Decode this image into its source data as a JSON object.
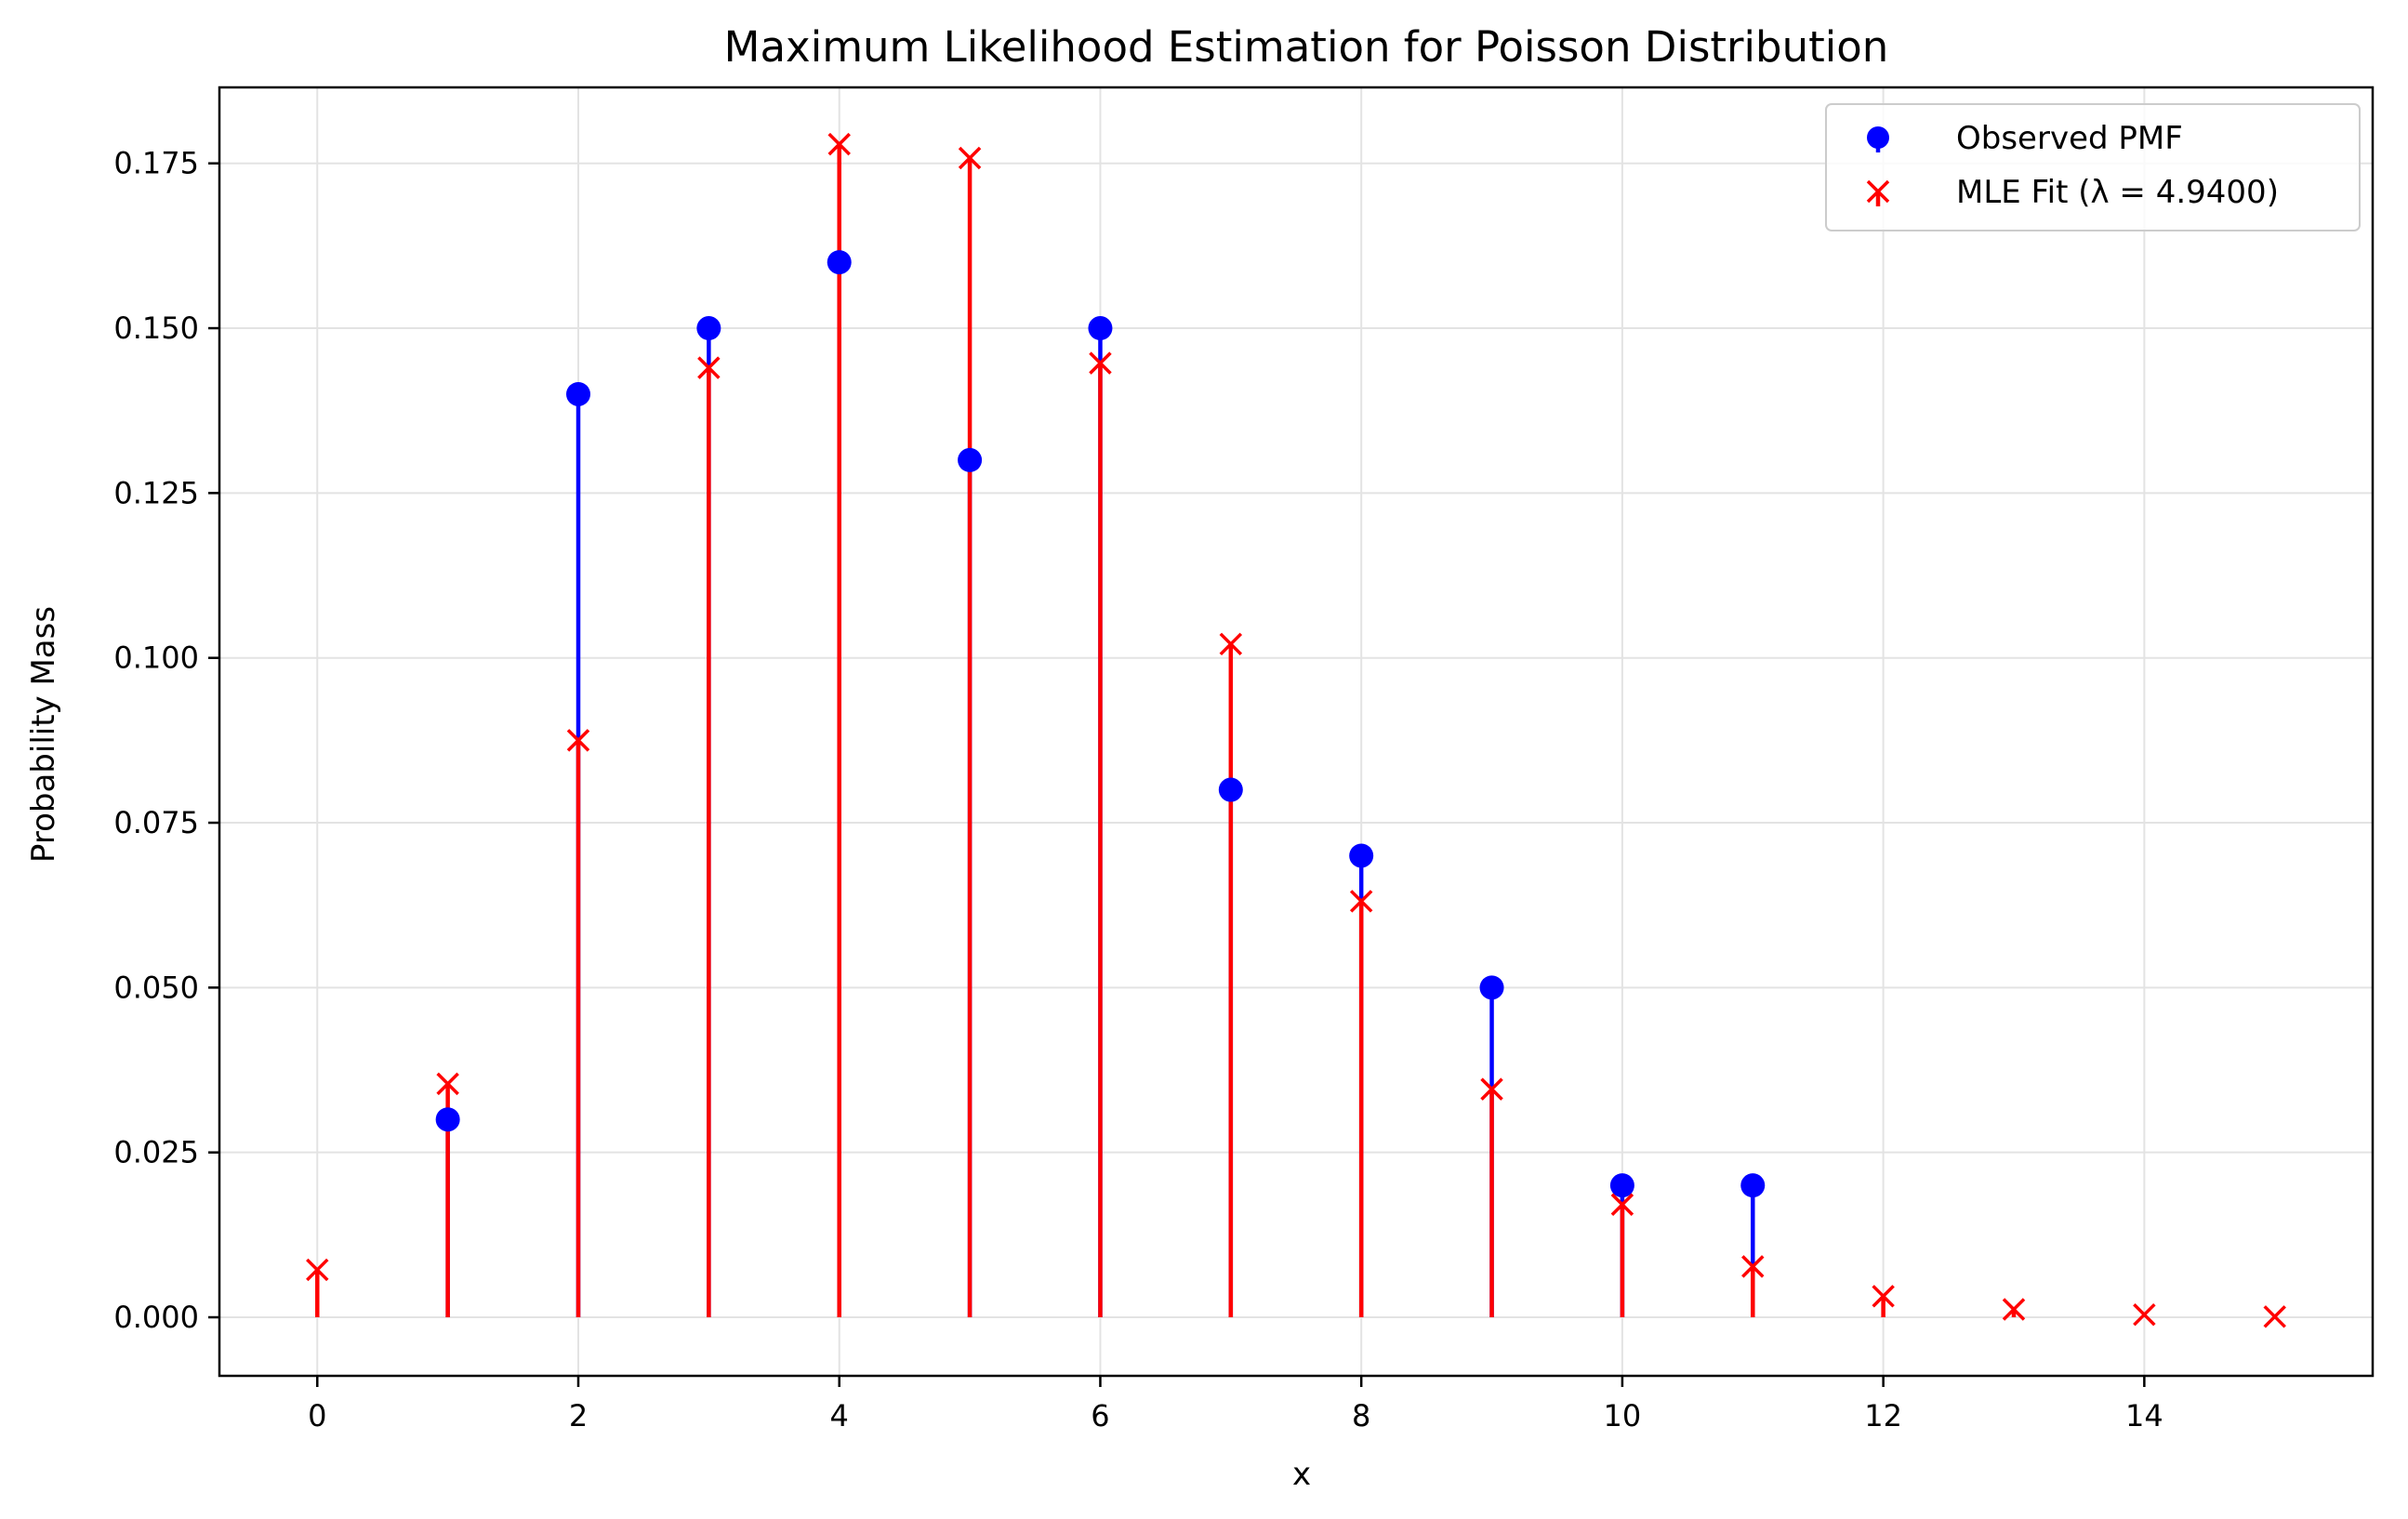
{
  "chart_data": {
    "type": "scatter",
    "title": "Maximum Likelihood Estimation for Poisson Distribution",
    "xlabel": "x",
    "ylabel": "Probability Mass",
    "xlim": [
      -0.75,
      15.75
    ],
    "ylim": [
      -0.00888,
      0.18652
    ],
    "x_ticks": [
      0,
      2,
      4,
      6,
      8,
      10,
      12,
      14
    ],
    "x_tick_labels": [
      "0",
      "2",
      "4",
      "6",
      "8",
      "10",
      "12",
      "14"
    ],
    "y_ticks": [
      0.0,
      0.025,
      0.05,
      0.075,
      0.1,
      0.125,
      0.15,
      0.175
    ],
    "y_tick_labels": [
      "0.000",
      "0.025",
      "0.050",
      "0.075",
      "0.100",
      "0.125",
      "0.150",
      "0.175"
    ],
    "grid": true,
    "legend_position": "upper right",
    "series": [
      {
        "name": "Observed PMF",
        "marker": "circle",
        "color": "#0000ff",
        "x": [
          1,
          2,
          3,
          4,
          5,
          6,
          7,
          8,
          9,
          10,
          11
        ],
        "y": [
          0.03,
          0.14,
          0.15,
          0.16,
          0.13,
          0.15,
          0.08,
          0.07,
          0.05,
          0.02,
          0.02
        ]
      },
      {
        "name": "MLE Fit (λ = 4.9400)",
        "marker": "x",
        "color": "#ff0000",
        "x": [
          0,
          1,
          2,
          3,
          4,
          5,
          6,
          7,
          8,
          9,
          10,
          11,
          12,
          13,
          14,
          15
        ],
        "y": [
          0.0072,
          0.0354,
          0.0875,
          0.144,
          0.1779,
          0.1758,
          0.1447,
          0.1021,
          0.0631,
          0.0346,
          0.0171,
          0.0077,
          0.0032,
          0.0012,
          0.0004,
          0.0001
        ]
      }
    ]
  }
}
